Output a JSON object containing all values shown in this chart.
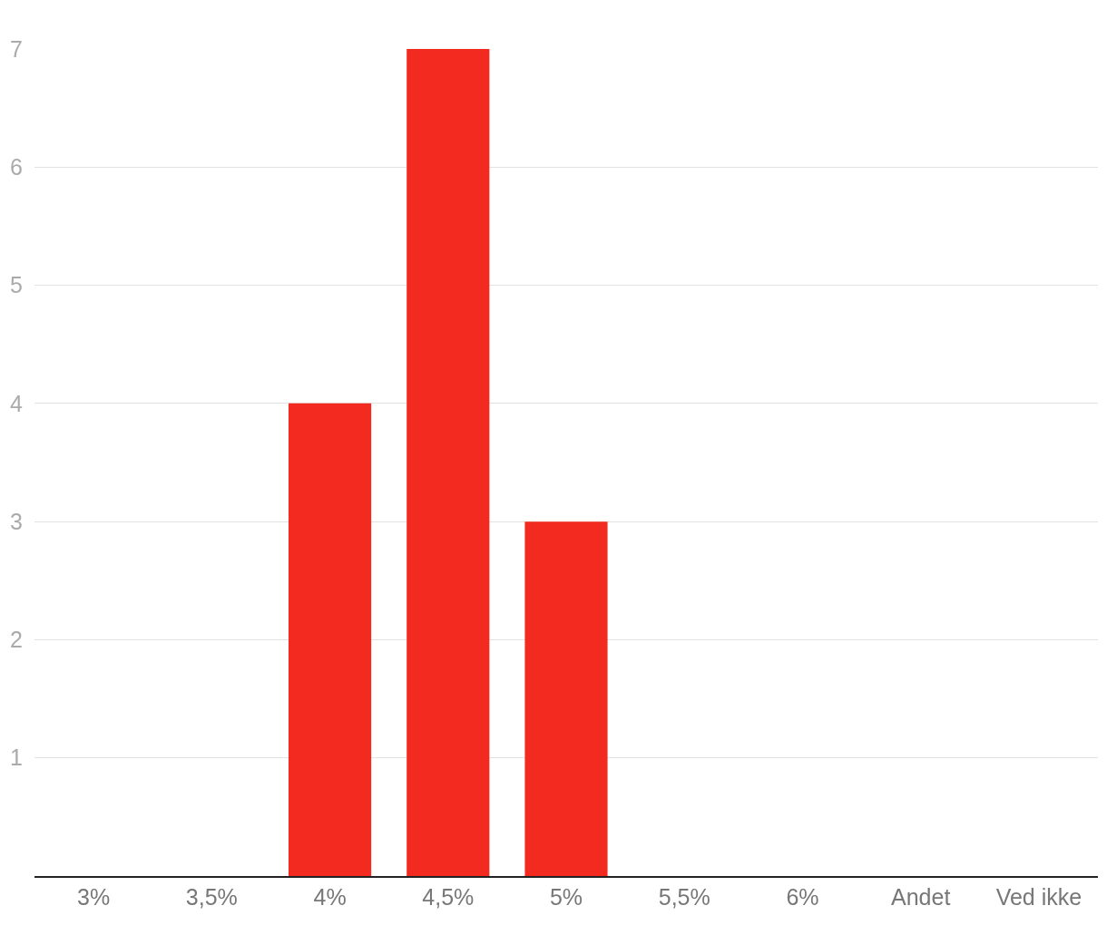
{
  "chart_data": {
    "type": "bar",
    "categories": [
      "3%",
      "3,5%",
      "4%",
      "4,5%",
      "5%",
      "5,5%",
      "6%",
      "Andet",
      "Ved ikke"
    ],
    "values": [
      0,
      0,
      4,
      7,
      3,
      0,
      0,
      0,
      0
    ],
    "color": "#f22a20",
    "ylim": [
      0,
      7
    ],
    "yticks": [
      1,
      2,
      3,
      4,
      5,
      6,
      7
    ],
    "grid": "y",
    "legend": false
  }
}
